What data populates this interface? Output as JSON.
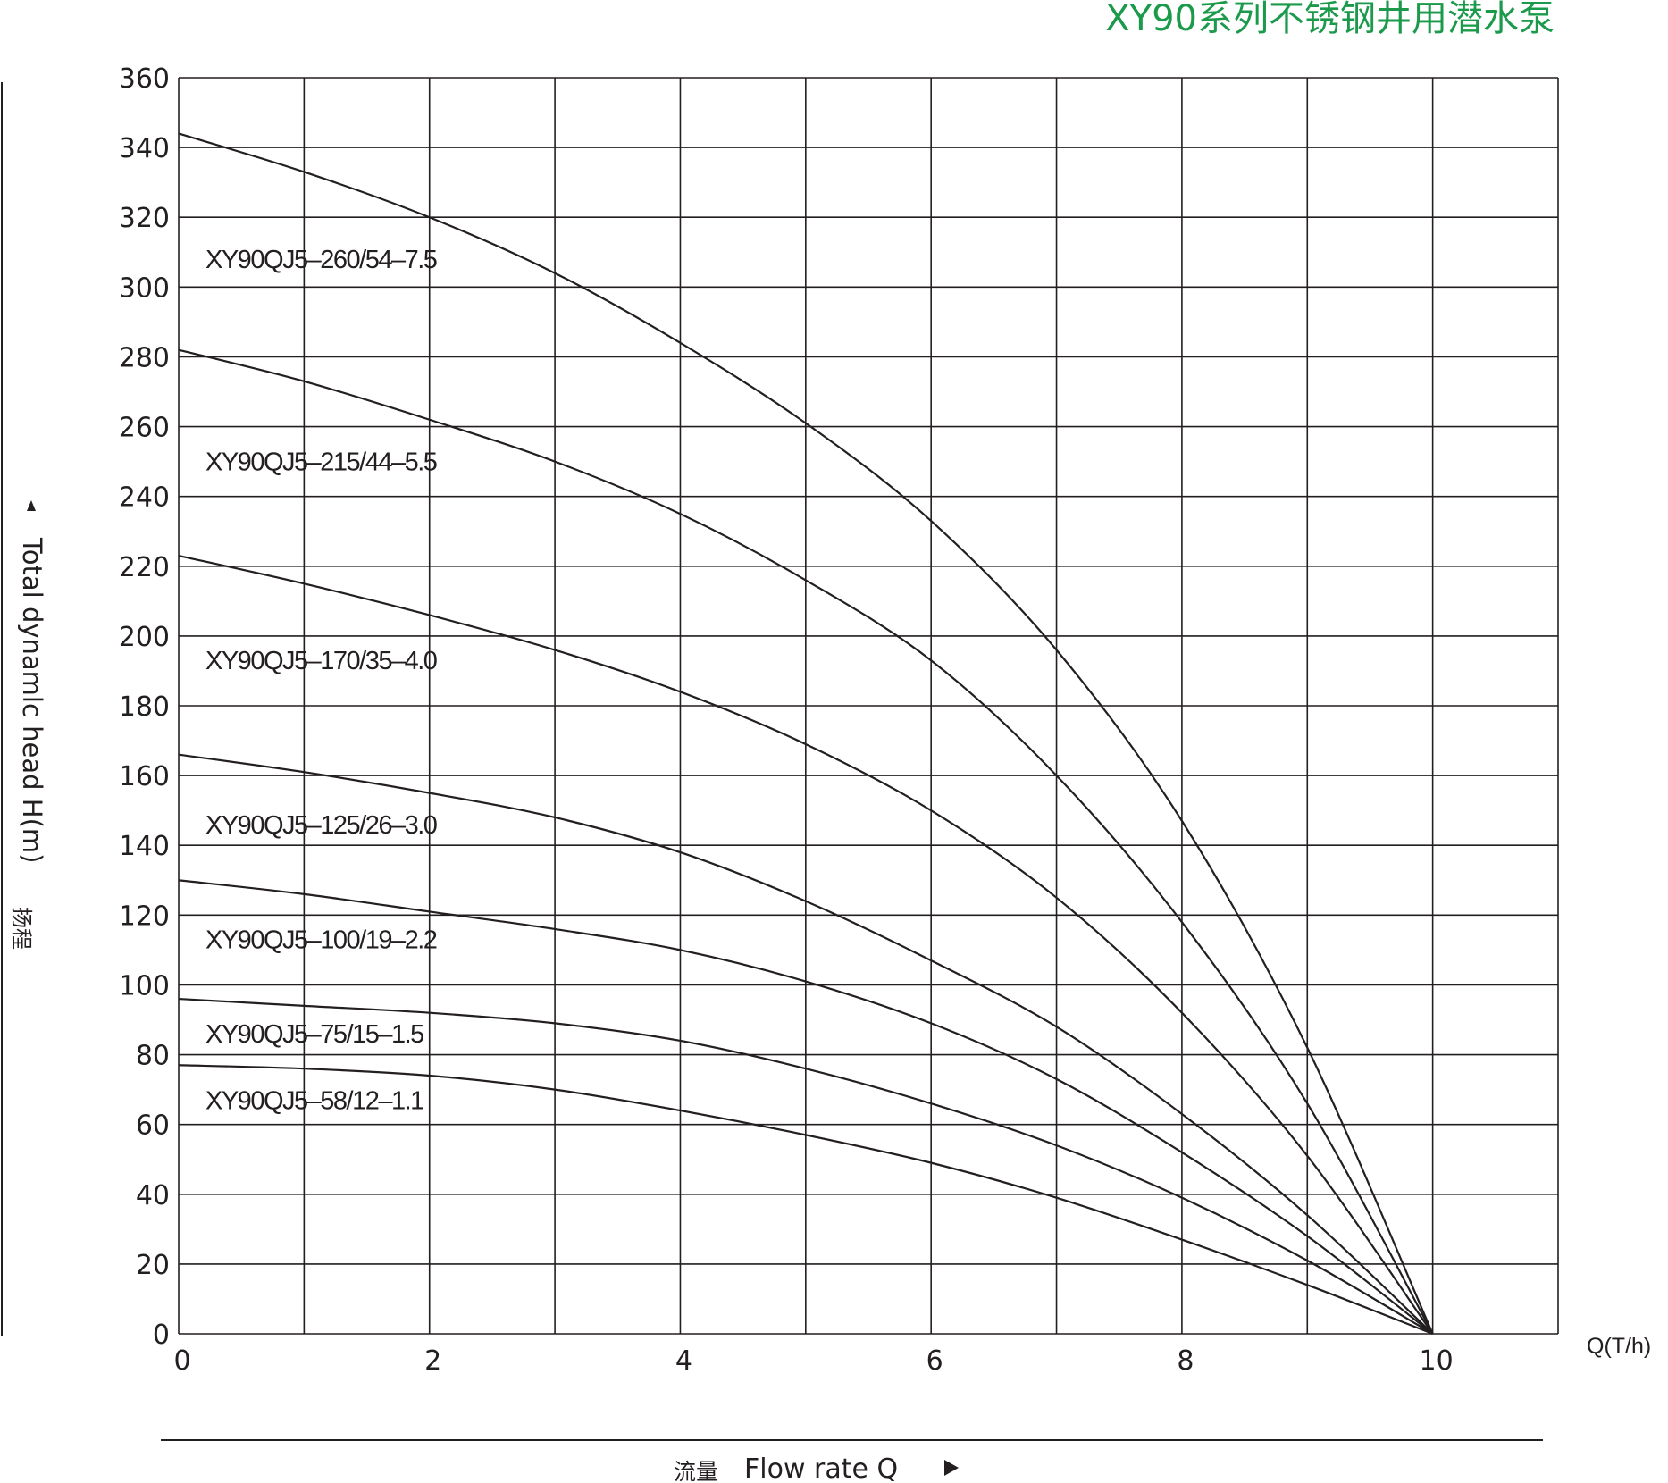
{
  "chart_data": {
    "type": "line",
    "title": "XY90系列不锈钢井用潜水泵",
    "xlabel_cn": "流量",
    "xlabel": "Flow rate Q",
    "x_unit_label": "Q(T/h)",
    "ylabel": "Total dynamlc head H(m)",
    "ylabel_cn": "扬程",
    "xlim": [
      0,
      11
    ],
    "ylim": [
      0,
      360
    ],
    "x_tick_labels": [
      "0",
      "2",
      "4",
      "6",
      "8",
      "10"
    ],
    "x_tick_values": [
      0,
      2,
      4,
      6,
      8,
      10
    ],
    "y_tick_labels": [
      "0",
      "20",
      "40",
      "60",
      "80",
      "100",
      "120",
      "140",
      "160",
      "180",
      "200",
      "220",
      "240",
      "260",
      "280",
      "300",
      "320",
      "340",
      "360"
    ],
    "y_tick_values": [
      0,
      20,
      40,
      60,
      80,
      100,
      120,
      140,
      160,
      180,
      200,
      220,
      240,
      260,
      280,
      300,
      320,
      340,
      360
    ],
    "grid": true,
    "colors": {
      "title": "#1a9a4a",
      "line": "#231f20",
      "grid": "#231f20"
    },
    "series": [
      {
        "name": "XY90QJ5–260/54–7.5",
        "label_y": 308,
        "x": [
          0,
          1,
          2,
          3,
          4,
          5,
          6,
          7,
          8,
          9,
          10
        ],
        "values": [
          344,
          333,
          320,
          304,
          284,
          261,
          233,
          196,
          147,
          82,
          0
        ]
      },
      {
        "name": "XY90QJ5–215/44–5.5",
        "label_y": 250,
        "x": [
          0,
          1,
          2,
          3,
          4,
          5,
          6,
          7,
          8,
          9,
          10
        ],
        "values": [
          282,
          273,
          262,
          250,
          235,
          216,
          193,
          160,
          118,
          66,
          0
        ]
      },
      {
        "name": "XY90QJ5–170/35–4.0",
        "label_y": 193,
        "x": [
          0,
          1,
          2,
          3,
          4,
          5,
          6,
          7,
          8,
          9,
          10
        ],
        "values": [
          223,
          215,
          206,
          196,
          184,
          169,
          150,
          125,
          92,
          51,
          0
        ]
      },
      {
        "name": "XY90QJ5–125/26–3.0",
        "label_y": 146,
        "x": [
          0,
          1,
          2,
          3,
          4,
          5,
          6,
          7,
          8,
          9,
          10
        ],
        "values": [
          166,
          161,
          155,
          148,
          138,
          124,
          107,
          88,
          63,
          34,
          0
        ]
      },
      {
        "name": "XY90QJ5–100/19–2.2",
        "label_y": 113,
        "x": [
          0,
          1,
          2,
          3,
          4,
          5,
          6,
          7,
          8,
          9,
          10
        ],
        "values": [
          130,
          126,
          121,
          116,
          110,
          101,
          89,
          73,
          52,
          28,
          0
        ]
      },
      {
        "name": "XY90QJ5–75/15–1.5",
        "label_y": 86,
        "x": [
          0,
          1,
          2,
          3,
          4,
          5,
          6,
          7,
          8,
          9,
          10
        ],
        "values": [
          96,
          94,
          92,
          89,
          84,
          76,
          66,
          54,
          39,
          21,
          0
        ]
      },
      {
        "name": "XY90QJ5–58/12–1.1",
        "label_y": 67,
        "x": [
          0,
          1,
          2,
          3,
          4,
          5,
          6,
          7,
          8,
          9,
          10
        ],
        "values": [
          77,
          76,
          74,
          70,
          64,
          57,
          49,
          39,
          27,
          14,
          0
        ]
      }
    ]
  }
}
